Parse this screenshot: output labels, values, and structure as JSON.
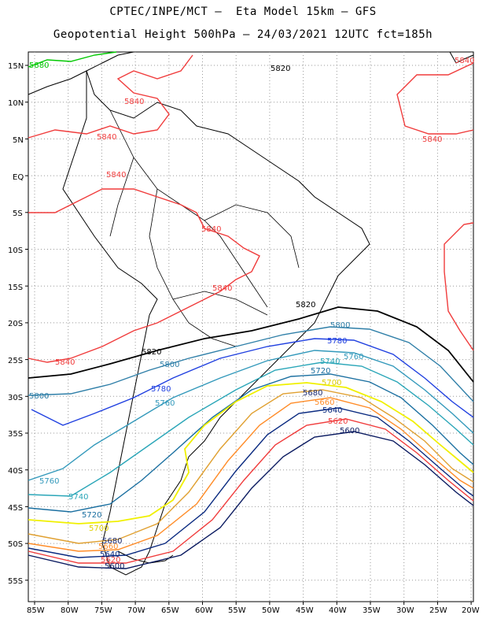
{
  "title": {
    "line1": "CPTEC/INPE/MCT –  Eta Model 15km – GFS",
    "line2": "Geopotential Height 500hPa – 24/03/2021 12UTC fct=185h"
  },
  "axes": {
    "lat_labels": [
      "15N",
      "10N",
      "5N",
      "EQ",
      "5S",
      "10S",
      "15S",
      "20S",
      "25S",
      "30S",
      "35S",
      "40S",
      "45S",
      "50S",
      "55S"
    ],
    "lon_labels": [
      "85W",
      "80W",
      "75W",
      "70W",
      "65W",
      "60W",
      "55W",
      "50W",
      "45W",
      "40W",
      "35W",
      "30W",
      "25W",
      "20W"
    ]
  },
  "contours": [
    {
      "value": "5880",
      "color": "#00c800"
    },
    {
      "value": "5840",
      "color": "#f03c3c"
    },
    {
      "value": "5820",
      "color": "#000000"
    },
    {
      "value": "5800",
      "color": "#2f7fa8"
    },
    {
      "value": "5780",
      "color": "#2040e0"
    },
    {
      "value": "5760",
      "color": "#3399bb"
    },
    {
      "value": "5740",
      "color": "#2aa6b8"
    },
    {
      "value": "5720",
      "color": "#1a6fa0"
    },
    {
      "value": "5700",
      "color": "#f0f000"
    },
    {
      "value": "5680",
      "color": "#e0a030"
    },
    {
      "value": "5660",
      "color": "#ff8c28"
    },
    {
      "value": "5640",
      "color": "#0a2a80"
    },
    {
      "value": "5620",
      "color": "#f03c3c"
    },
    {
      "value": "5600",
      "color": "#0a1a60"
    }
  ]
}
